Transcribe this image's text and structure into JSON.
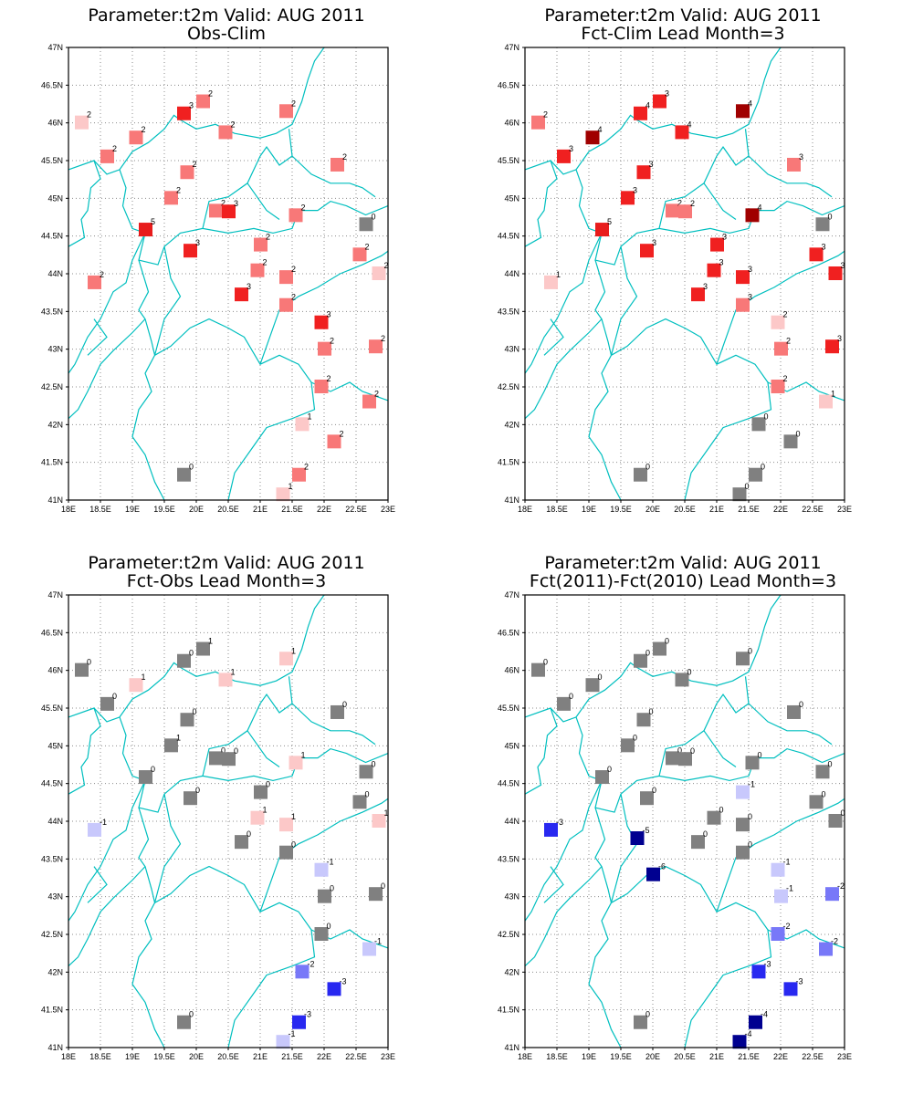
{
  "colors": {
    "border": "#00bfbf",
    "frame": "#000000",
    "grid": "#8c8c8c",
    "zero": "#808080",
    "pos": {
      "1": "#fcc8c8",
      "2": "#f87878",
      "3": "#f02020",
      "4": "#f02020",
      "5": "#e81c1c",
      "6": "#a00000"
    },
    "neg": {
      "1": "#c8c8fc",
      "2": "#7878f8",
      "3": "#2828f0",
      "4": "#000090",
      "5": "#000090",
      "6": "#000090"
    }
  },
  "axes": {
    "x_range": [
      18,
      23
    ],
    "y_range": [
      41,
      47
    ],
    "x_ticks": [
      "18E",
      "18.5E",
      "19E",
      "19.5E",
      "20E",
      "20.5E",
      "21E",
      "21.5E",
      "22E",
      "22.5E",
      "23E"
    ],
    "y_ticks": [
      "41N",
      "41.5N",
      "42N",
      "42.5N",
      "43N",
      "43.5N",
      "44N",
      "44.5N",
      "45N",
      "45.5N",
      "46N",
      "46.5N",
      "47N"
    ],
    "grid": "dotted"
  },
  "chart_data": [
    {
      "type": "map",
      "title": "Parameter:t2m Valid: AUG 2011",
      "subtitle": "Obs-Clim",
      "points": [
        {
          "lon": 18.2,
          "lat": 46.0,
          "v": 2,
          "c": 1
        },
        {
          "lon": 18.6,
          "lat": 45.55,
          "v": 2
        },
        {
          "lon": 19.05,
          "lat": 45.8,
          "v": 2
        },
        {
          "lon": 19.8,
          "lat": 46.12,
          "v": 3
        },
        {
          "lon": 20.1,
          "lat": 46.28,
          "v": 2
        },
        {
          "lon": 20.45,
          "lat": 45.87,
          "v": 2
        },
        {
          "lon": 21.4,
          "lat": 46.15,
          "v": 2
        },
        {
          "lon": 22.2,
          "lat": 45.44,
          "v": 2
        },
        {
          "lon": 19.85,
          "lat": 45.34,
          "v": 2
        },
        {
          "lon": 19.6,
          "lat": 45.0,
          "v": 2
        },
        {
          "lon": 20.3,
          "lat": 44.83,
          "v": 2
        },
        {
          "lon": 20.5,
          "lat": 44.82,
          "v": 3
        },
        {
          "lon": 21.55,
          "lat": 44.77,
          "v": 2
        },
        {
          "lon": 22.65,
          "lat": 44.65,
          "v": 0
        },
        {
          "lon": 19.2,
          "lat": 44.58,
          "v": 5
        },
        {
          "lon": 19.9,
          "lat": 44.3,
          "v": 3
        },
        {
          "lon": 21.0,
          "lat": 44.38,
          "v": 2
        },
        {
          "lon": 20.95,
          "lat": 44.04,
          "v": 2
        },
        {
          "lon": 21.4,
          "lat": 43.95,
          "v": 2
        },
        {
          "lon": 22.55,
          "lat": 44.25,
          "v": 2
        },
        {
          "lon": 22.85,
          "lat": 44.0,
          "v": 2,
          "c": 1
        },
        {
          "lon": 18.4,
          "lat": 43.88,
          "v": 2
        },
        {
          "lon": 20.7,
          "lat": 43.72,
          "v": 3
        },
        {
          "lon": 21.4,
          "lat": 43.58,
          "v": 2
        },
        {
          "lon": 21.95,
          "lat": 43.35,
          "v": 3
        },
        {
          "lon": 22.0,
          "lat": 43.0,
          "v": 2
        },
        {
          "lon": 22.8,
          "lat": 43.03,
          "v": 2
        },
        {
          "lon": 21.95,
          "lat": 42.5,
          "v": 2
        },
        {
          "lon": 22.7,
          "lat": 42.3,
          "v": 2
        },
        {
          "lon": 21.65,
          "lat": 42.0,
          "v": 1
        },
        {
          "lon": 22.15,
          "lat": 41.77,
          "v": 2
        },
        {
          "lon": 19.8,
          "lat": 41.33,
          "v": 0
        },
        {
          "lon": 21.6,
          "lat": 41.33,
          "v": 2
        },
        {
          "lon": 21.35,
          "lat": 41.07,
          "v": 1
        }
      ]
    },
    {
      "type": "map",
      "title": "Parameter:t2m Valid: AUG 2011",
      "subtitle": "Fct-Clim Lead Month=3",
      "points": [
        {
          "lon": 18.2,
          "lat": 46.0,
          "v": 2
        },
        {
          "lon": 18.6,
          "lat": 45.55,
          "v": 3
        },
        {
          "lon": 19.05,
          "lat": 45.8,
          "v": 4,
          "c": 6
        },
        {
          "lon": 19.8,
          "lat": 46.12,
          "v": 4
        },
        {
          "lon": 20.1,
          "lat": 46.28,
          "v": 3
        },
        {
          "lon": 20.45,
          "lat": 45.87,
          "v": 4
        },
        {
          "lon": 21.4,
          "lat": 46.15,
          "v": 4,
          "c": 6
        },
        {
          "lon": 22.2,
          "lat": 45.44,
          "v": 3,
          "c": 2
        },
        {
          "lon": 19.85,
          "lat": 45.34,
          "v": 3
        },
        {
          "lon": 19.6,
          "lat": 45.0,
          "v": 3
        },
        {
          "lon": 20.3,
          "lat": 44.83,
          "v": 2
        },
        {
          "lon": 20.5,
          "lat": 44.82,
          "v": 2
        },
        {
          "lon": 21.55,
          "lat": 44.77,
          "v": 4,
          "c": 6
        },
        {
          "lon": 22.65,
          "lat": 44.65,
          "v": 0
        },
        {
          "lon": 19.2,
          "lat": 44.58,
          "v": 5
        },
        {
          "lon": 19.9,
          "lat": 44.3,
          "v": 3
        },
        {
          "lon": 21.0,
          "lat": 44.38,
          "v": 3
        },
        {
          "lon": 20.95,
          "lat": 44.04,
          "v": 3
        },
        {
          "lon": 21.4,
          "lat": 43.95,
          "v": 3
        },
        {
          "lon": 22.55,
          "lat": 44.25,
          "v": 3
        },
        {
          "lon": 22.85,
          "lat": 44.0,
          "v": 3
        },
        {
          "lon": 18.4,
          "lat": 43.88,
          "v": 1
        },
        {
          "lon": 20.7,
          "lat": 43.72,
          "v": 3
        },
        {
          "lon": 21.4,
          "lat": 43.58,
          "v": 3,
          "c": 2
        },
        {
          "lon": 21.95,
          "lat": 43.35,
          "v": 2,
          "c": 1
        },
        {
          "lon": 22.0,
          "lat": 43.0,
          "v": 2
        },
        {
          "lon": 22.8,
          "lat": 43.03,
          "v": 3
        },
        {
          "lon": 21.95,
          "lat": 42.5,
          "v": 2
        },
        {
          "lon": 22.7,
          "lat": 42.3,
          "v": 1
        },
        {
          "lon": 21.65,
          "lat": 42.0,
          "v": 0
        },
        {
          "lon": 22.15,
          "lat": 41.77,
          "v": 0
        },
        {
          "lon": 19.8,
          "lat": 41.33,
          "v": 0
        },
        {
          "lon": 21.6,
          "lat": 41.33,
          "v": 0
        },
        {
          "lon": 21.35,
          "lat": 41.07,
          "v": 0
        }
      ]
    },
    {
      "type": "map",
      "title": "Parameter:t2m Valid: AUG 2011",
      "subtitle": "Fct-Obs Lead Month=3",
      "points": [
        {
          "lon": 18.2,
          "lat": 46.0,
          "v": 0
        },
        {
          "lon": 18.6,
          "lat": 45.55,
          "v": 0
        },
        {
          "lon": 19.05,
          "lat": 45.8,
          "v": 1
        },
        {
          "lon": 19.8,
          "lat": 46.12,
          "v": 0
        },
        {
          "lon": 20.1,
          "lat": 46.28,
          "v": 1,
          "c": 0
        },
        {
          "lon": 20.45,
          "lat": 45.87,
          "v": 1
        },
        {
          "lon": 21.4,
          "lat": 46.15,
          "v": 1
        },
        {
          "lon": 22.2,
          "lat": 45.44,
          "v": 0
        },
        {
          "lon": 19.85,
          "lat": 45.34,
          "v": 0
        },
        {
          "lon": 19.6,
          "lat": 45.0,
          "v": 1,
          "c": 0
        },
        {
          "lon": 20.3,
          "lat": 44.83,
          "v": 0
        },
        {
          "lon": 20.5,
          "lat": 44.82,
          "v": 0
        },
        {
          "lon": 21.55,
          "lat": 44.77,
          "v": 1
        },
        {
          "lon": 22.65,
          "lat": 44.65,
          "v": 0
        },
        {
          "lon": 19.2,
          "lat": 44.58,
          "v": 0
        },
        {
          "lon": 19.9,
          "lat": 44.3,
          "v": 0
        },
        {
          "lon": 21.0,
          "lat": 44.38,
          "v": 0
        },
        {
          "lon": 20.95,
          "lat": 44.04,
          "v": 1
        },
        {
          "lon": 21.4,
          "lat": 43.95,
          "v": 1
        },
        {
          "lon": 22.55,
          "lat": 44.25,
          "v": 0
        },
        {
          "lon": 22.85,
          "lat": 44.0,
          "v": 1
        },
        {
          "lon": 18.4,
          "lat": 43.88,
          "v": -1
        },
        {
          "lon": 20.7,
          "lat": 43.72,
          "v": 0
        },
        {
          "lon": 21.4,
          "lat": 43.58,
          "v": 0
        },
        {
          "lon": 21.95,
          "lat": 43.35,
          "v": -1
        },
        {
          "lon": 22.0,
          "lat": 43.0,
          "v": 0
        },
        {
          "lon": 22.8,
          "lat": 43.03,
          "v": 0
        },
        {
          "lon": 21.95,
          "lat": 42.5,
          "v": 0
        },
        {
          "lon": 22.7,
          "lat": 42.3,
          "v": -1
        },
        {
          "lon": 21.65,
          "lat": 42.0,
          "v": -2
        },
        {
          "lon": 22.15,
          "lat": 41.77,
          "v": -3
        },
        {
          "lon": 19.8,
          "lat": 41.33,
          "v": 0
        },
        {
          "lon": 21.6,
          "lat": 41.33,
          "v": -3
        },
        {
          "lon": 21.35,
          "lat": 41.07,
          "v": -1
        }
      ]
    },
    {
      "type": "map",
      "title": "Parameter:t2m Valid: AUG 2011",
      "subtitle": "Fct(2011)-Fct(2010) Lead Month=3",
      "points": [
        {
          "lon": 18.2,
          "lat": 46.0,
          "v": 0
        },
        {
          "lon": 18.6,
          "lat": 45.55,
          "v": 0
        },
        {
          "lon": 19.05,
          "lat": 45.8,
          "v": 0
        },
        {
          "lon": 19.8,
          "lat": 46.12,
          "v": 0
        },
        {
          "lon": 20.1,
          "lat": 46.28,
          "v": 0
        },
        {
          "lon": 20.45,
          "lat": 45.87,
          "v": 0
        },
        {
          "lon": 21.4,
          "lat": 46.15,
          "v": 0
        },
        {
          "lon": 22.2,
          "lat": 45.44,
          "v": 0
        },
        {
          "lon": 19.85,
          "lat": 45.34,
          "v": 0
        },
        {
          "lon": 19.6,
          "lat": 45.0,
          "v": 0
        },
        {
          "lon": 20.3,
          "lat": 44.83,
          "v": 0
        },
        {
          "lon": 20.5,
          "lat": 44.82,
          "v": 0
        },
        {
          "lon": 21.55,
          "lat": 44.77,
          "v": 0
        },
        {
          "lon": 22.65,
          "lat": 44.65,
          "v": 0
        },
        {
          "lon": 19.2,
          "lat": 44.58,
          "v": 0
        },
        {
          "lon": 19.9,
          "lat": 44.3,
          "v": 0
        },
        {
          "lon": 21.4,
          "lat": 44.38,
          "v": -1
        },
        {
          "lon": 20.95,
          "lat": 44.04,
          "v": 0
        },
        {
          "lon": 21.4,
          "lat": 43.95,
          "v": 0
        },
        {
          "lon": 22.55,
          "lat": 44.25,
          "v": 0
        },
        {
          "lon": 22.85,
          "lat": 44.0,
          "v": 0
        },
        {
          "lon": 18.4,
          "lat": 43.88,
          "v": -3
        },
        {
          "lon": 19.75,
          "lat": 43.77,
          "v": -5
        },
        {
          "lon": 20.7,
          "lat": 43.72,
          "v": 0
        },
        {
          "lon": 21.4,
          "lat": 43.58,
          "v": 0
        },
        {
          "lon": 20.0,
          "lat": 43.29,
          "v": -6
        },
        {
          "lon": 21.95,
          "lat": 43.35,
          "v": -1
        },
        {
          "lon": 22.0,
          "lat": 43.0,
          "v": -1
        },
        {
          "lon": 22.8,
          "lat": 43.03,
          "v": -2
        },
        {
          "lon": 21.95,
          "lat": 42.5,
          "v": -2
        },
        {
          "lon": 22.7,
          "lat": 42.3,
          "v": -2
        },
        {
          "lon": 21.65,
          "lat": 42.0,
          "v": -3
        },
        {
          "lon": 22.15,
          "lat": 41.77,
          "v": -3
        },
        {
          "lon": 19.8,
          "lat": 41.33,
          "v": 0
        },
        {
          "lon": 21.6,
          "lat": 41.33,
          "v": -4
        },
        {
          "lon": 21.35,
          "lat": 41.07,
          "v": -4
        }
      ]
    }
  ]
}
